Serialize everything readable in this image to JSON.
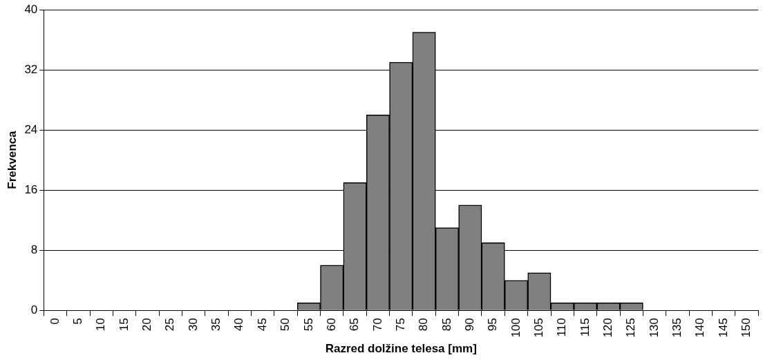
{
  "chart_data": {
    "type": "bar",
    "xlabel": "Razred dolžine telesa [mm]",
    "ylabel": "Frekvenca",
    "categories": [
      "0",
      "5",
      "10",
      "15",
      "20",
      "25",
      "30",
      "35",
      "40",
      "45",
      "50",
      "55",
      "60",
      "65",
      "70",
      "75",
      "80",
      "85",
      "90",
      "95",
      "100",
      "105",
      "110",
      "115",
      "120",
      "125",
      "130",
      "135",
      "140",
      "145",
      "150"
    ],
    "values": [
      0,
      0,
      0,
      0,
      0,
      0,
      0,
      0,
      0,
      0,
      0,
      1,
      6,
      17,
      26,
      33,
      37,
      11,
      14,
      9,
      4,
      5,
      1,
      1,
      1,
      1,
      0,
      0,
      0,
      0,
      0
    ],
    "color": "#808080",
    "ylim": [
      0,
      40
    ],
    "yticks": [
      0,
      8,
      16,
      24,
      32,
      40
    ],
    "grid": "y",
    "legend": false
  }
}
